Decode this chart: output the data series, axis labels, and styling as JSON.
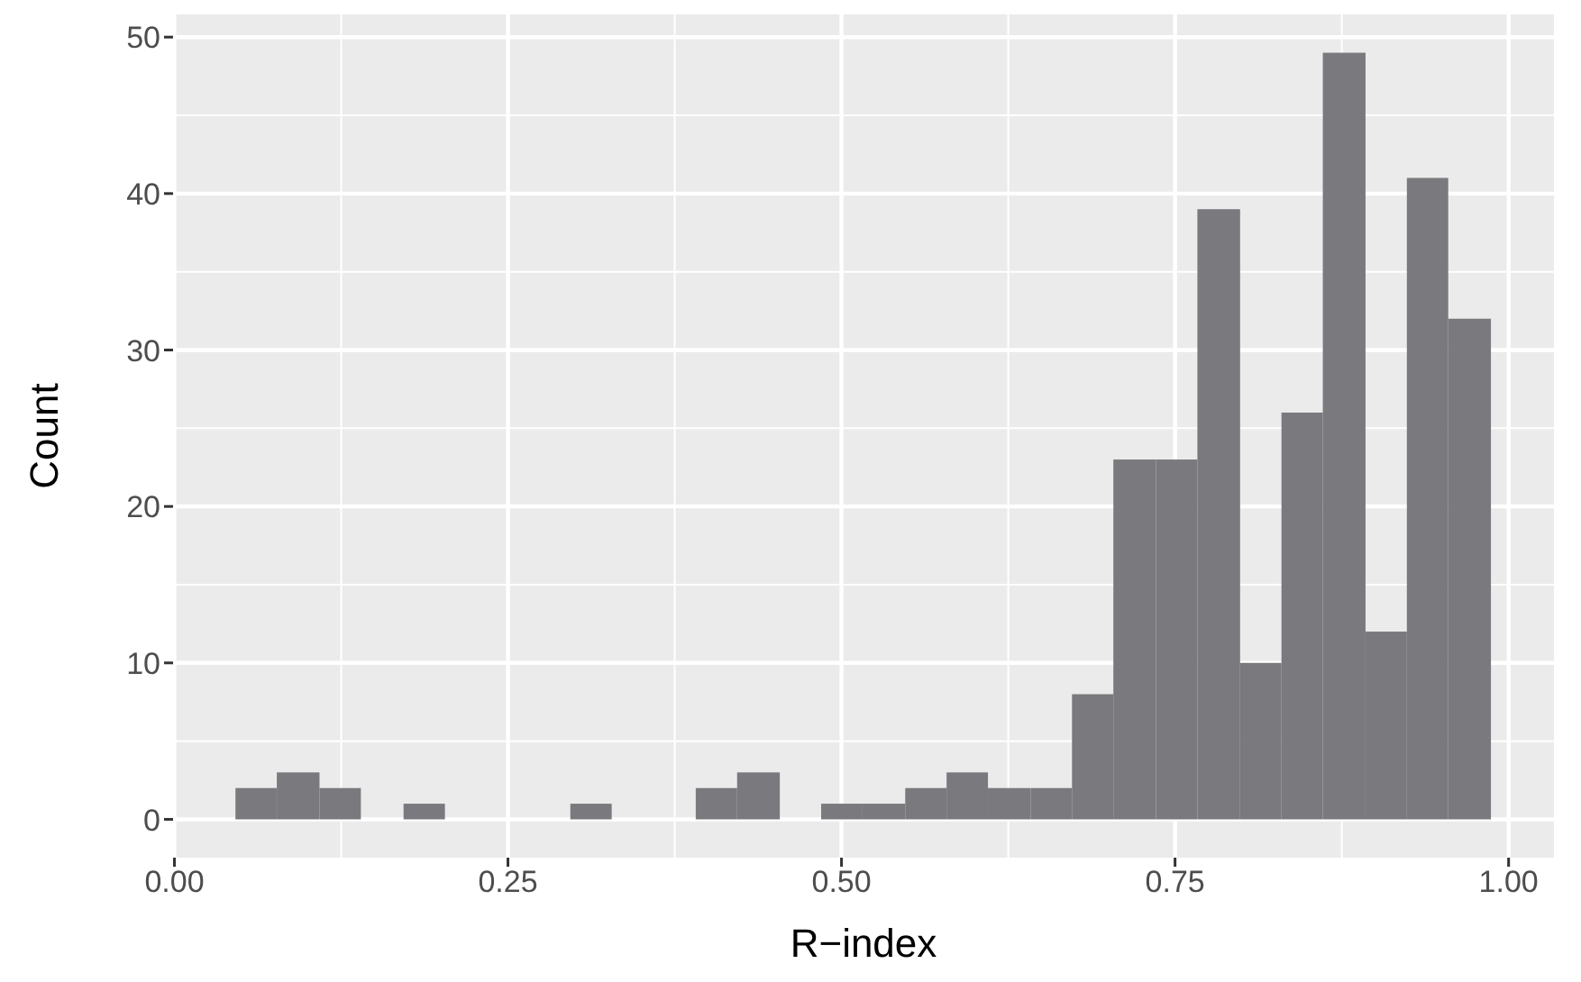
{
  "chart_data": {
    "type": "histogram",
    "xlabel": "R−index",
    "ylabel": "Count",
    "bins": [
      0.046,
      0.077,
      0.109,
      0.14,
      0.172,
      0.203,
      0.297,
      0.328,
      0.391,
      0.422,
      0.454,
      0.485,
      0.516,
      0.548,
      0.579,
      0.61,
      0.642,
      0.673,
      0.704,
      0.736,
      0.767,
      0.799,
      0.83,
      0.861,
      0.893,
      0.924,
      0.955,
      0.987
    ],
    "values": [
      2,
      3,
      2,
      0,
      1,
      0,
      1,
      0,
      2,
      3,
      0,
      1,
      1,
      2,
      3,
      2,
      2,
      8,
      23,
      23,
      39,
      10,
      26,
      49,
      12,
      41,
      32
    ],
    "color": "#7a7a7e",
    "xlim": [
      -0.001,
      1.034
    ],
    "xticks": [
      {
        "value": 0,
        "label": "0.00"
      },
      {
        "value": 0.25,
        "label": "0.25"
      },
      {
        "value": 0.5,
        "label": "0.50"
      },
      {
        "value": 0.75,
        "label": "0.75"
      },
      {
        "value": 1,
        "label": "1.00"
      }
    ],
    "ylim": [
      -2.45,
      51.45
    ],
    "yticks": [
      0,
      10,
      20,
      30,
      40,
      50
    ],
    "grid": true
  }
}
